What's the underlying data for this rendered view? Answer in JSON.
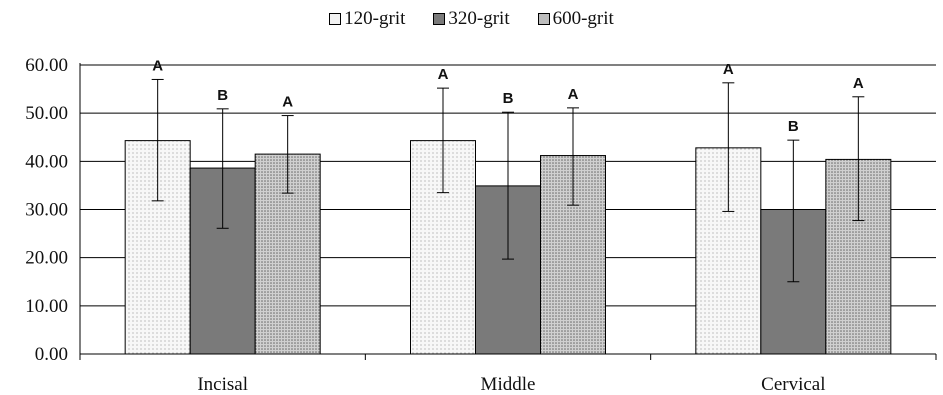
{
  "chart_data": {
    "type": "bar",
    "categories": [
      "Incisal",
      "Middle",
      "Cervical"
    ],
    "series": [
      {
        "name": "120-grit",
        "values": [
          44.3,
          44.3,
          42.8
        ],
        "err_low": [
          31.8,
          33.5,
          29.6
        ],
        "err_high": [
          57.0,
          55.2,
          56.3
        ],
        "sig": [
          "A",
          "A",
          "A"
        ],
        "pattern": "light-dots",
        "color": "#f2f2f2"
      },
      {
        "name": "320-grit",
        "values": [
          38.6,
          34.9,
          30.0
        ],
        "err_low": [
          26.1,
          19.7,
          15.0
        ],
        "err_high": [
          50.9,
          50.2,
          44.4
        ],
        "sig": [
          "B",
          "B",
          "B"
        ],
        "pattern": "solid",
        "color": "#7a7a7a"
      },
      {
        "name": "600-grit",
        "values": [
          41.5,
          41.2,
          40.4
        ],
        "err_low": [
          33.4,
          30.9,
          27.7
        ],
        "err_high": [
          49.5,
          51.1,
          53.4
        ],
        "sig": [
          "A",
          "A",
          "A"
        ],
        "pattern": "dense-dots",
        "color": "#bdbdbd"
      }
    ],
    "y_ticks": [
      "0.00",
      "10.00",
      "20.00",
      "30.00",
      "40.00",
      "50.00",
      "60.00"
    ],
    "ylim": [
      0,
      60
    ],
    "grid": true,
    "legend_position": "top-center",
    "title": "",
    "xlabel": "",
    "ylabel": ""
  }
}
